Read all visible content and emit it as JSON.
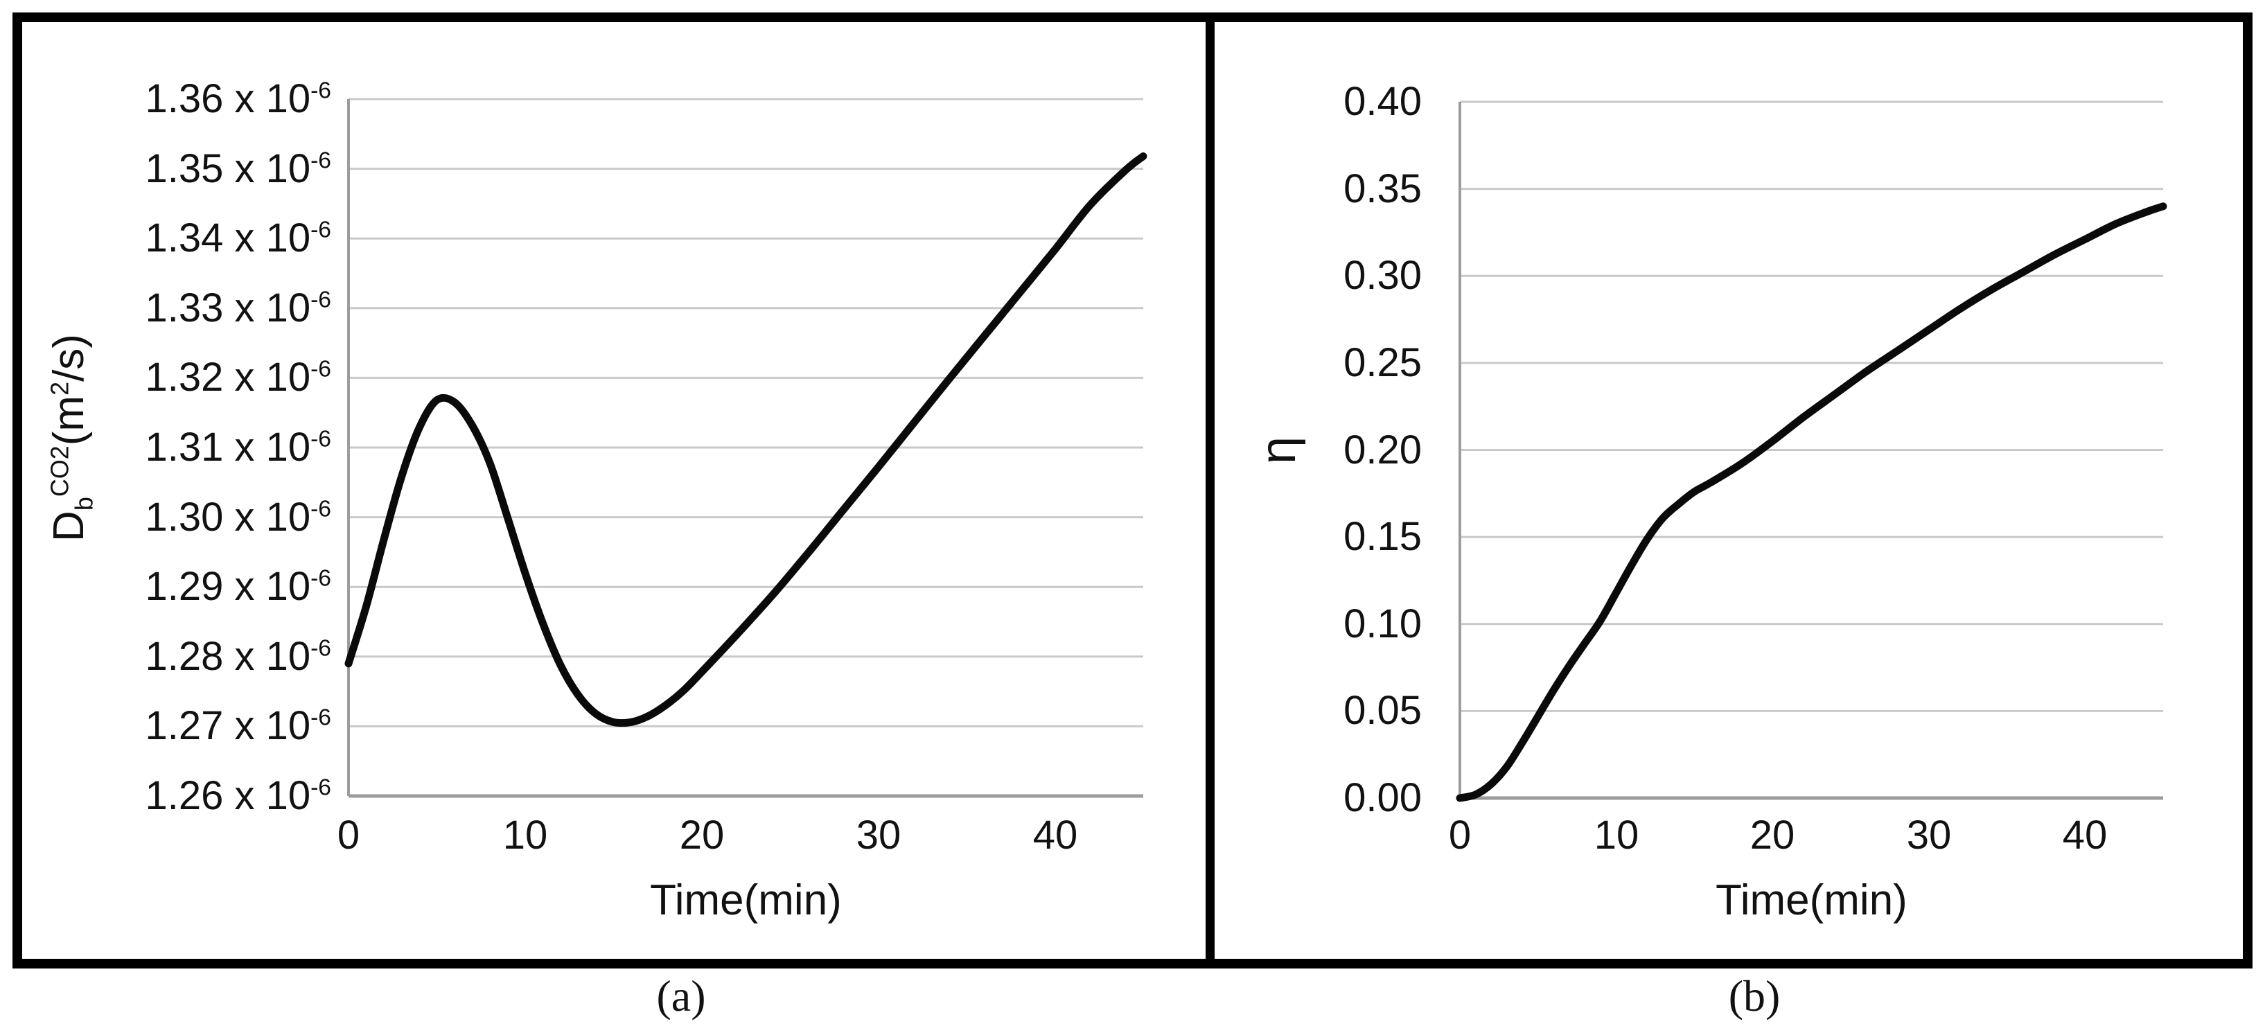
{
  "figure": {
    "background": "#ffffff",
    "frame_color": "#000000",
    "gridline_color": "#c9c9c9",
    "axis_line_color": "#9c9c9c",
    "curve_color": "#0a0a0a"
  },
  "panels": [
    {
      "caption": "(a)",
      "xlabel": "Time(min)",
      "ylabel": {
        "base": "D",
        "sub": "b",
        "sup": "CO2",
        "unit_open": "(m",
        "unit_sup": "2",
        "unit_close": "/s)"
      },
      "x_ticks": [
        "0",
        "10",
        "20",
        "30",
        "40"
      ],
      "y_tick_mantissas": [
        "1.36",
        "1.35",
        "1.34",
        "1.33",
        "1.32",
        "1.31",
        "1.30",
        "1.29",
        "1.28",
        "1.27",
        "1.26"
      ],
      "y_tick_times": " x 10",
      "y_tick_exponent": "-6"
    },
    {
      "caption": "(b)",
      "xlabel": "Time(min)",
      "ylabel": {
        "base": "η"
      },
      "x_ticks": [
        "0",
        "10",
        "20",
        "30",
        "40"
      ],
      "y_ticks": [
        "0.40",
        "0.35",
        "0.30",
        "0.25",
        "0.20",
        "0.15",
        "0.10",
        "0.05",
        "0.00"
      ]
    }
  ],
  "chart_data": [
    {
      "type": "line",
      "title": "",
      "xlabel": "Time(min)",
      "ylabel": "Db^CO2 (m^2/s)",
      "xlim": [
        0,
        45
      ],
      "ylim": [
        1.26e-06,
        1.36e-06
      ],
      "grid": "horizontal",
      "legend": "none",
      "x": [
        0,
        1,
        2,
        3,
        4,
        5,
        6,
        7,
        8,
        9,
        10,
        11,
        12,
        13,
        14,
        15,
        16,
        17,
        18,
        19,
        20,
        22,
        24,
        26,
        28,
        30,
        32,
        34,
        36,
        38,
        40,
        42,
        44,
        45
      ],
      "y": [
        1.279e-06,
        1.2872e-06,
        1.2968e-06,
        1.3058e-06,
        1.3128e-06,
        1.3168e-06,
        1.3165e-06,
        1.3132e-06,
        1.3078e-06,
        1.3e-06,
        1.292e-06,
        1.2848e-06,
        1.2788e-06,
        1.2745e-06,
        1.2718e-06,
        1.2706e-06,
        1.2706e-06,
        1.2715e-06,
        1.2731e-06,
        1.2752e-06,
        1.2778e-06,
        1.2832e-06,
        1.2888e-06,
        1.2948e-06,
        1.301e-06,
        1.3072e-06,
        1.3135e-06,
        1.3198e-06,
        1.326e-06,
        1.3322e-06,
        1.3384e-06,
        1.3448e-06,
        1.3498e-06,
        1.3518e-06
      ]
    },
    {
      "type": "line",
      "title": "",
      "xlabel": "Time(min)",
      "ylabel": "η",
      "xlim": [
        0,
        45
      ],
      "ylim": [
        0,
        0.4
      ],
      "grid": "horizontal",
      "legend": "none",
      "x": [
        0,
        1,
        2,
        3,
        4,
        5,
        6,
        7,
        8,
        9,
        10,
        11,
        12,
        13,
        14,
        15,
        16,
        18,
        20,
        22,
        24,
        26,
        28,
        30,
        32,
        34,
        36,
        38,
        40,
        42,
        44,
        45
      ],
      "y": [
        0.0,
        0.002,
        0.008,
        0.018,
        0.032,
        0.047,
        0.062,
        0.076,
        0.089,
        0.102,
        0.118,
        0.134,
        0.149,
        0.161,
        0.169,
        0.176,
        0.181,
        0.192,
        0.205,
        0.219,
        0.232,
        0.245,
        0.257,
        0.269,
        0.281,
        0.292,
        0.302,
        0.312,
        0.321,
        0.33,
        0.337,
        0.34
      ]
    }
  ]
}
